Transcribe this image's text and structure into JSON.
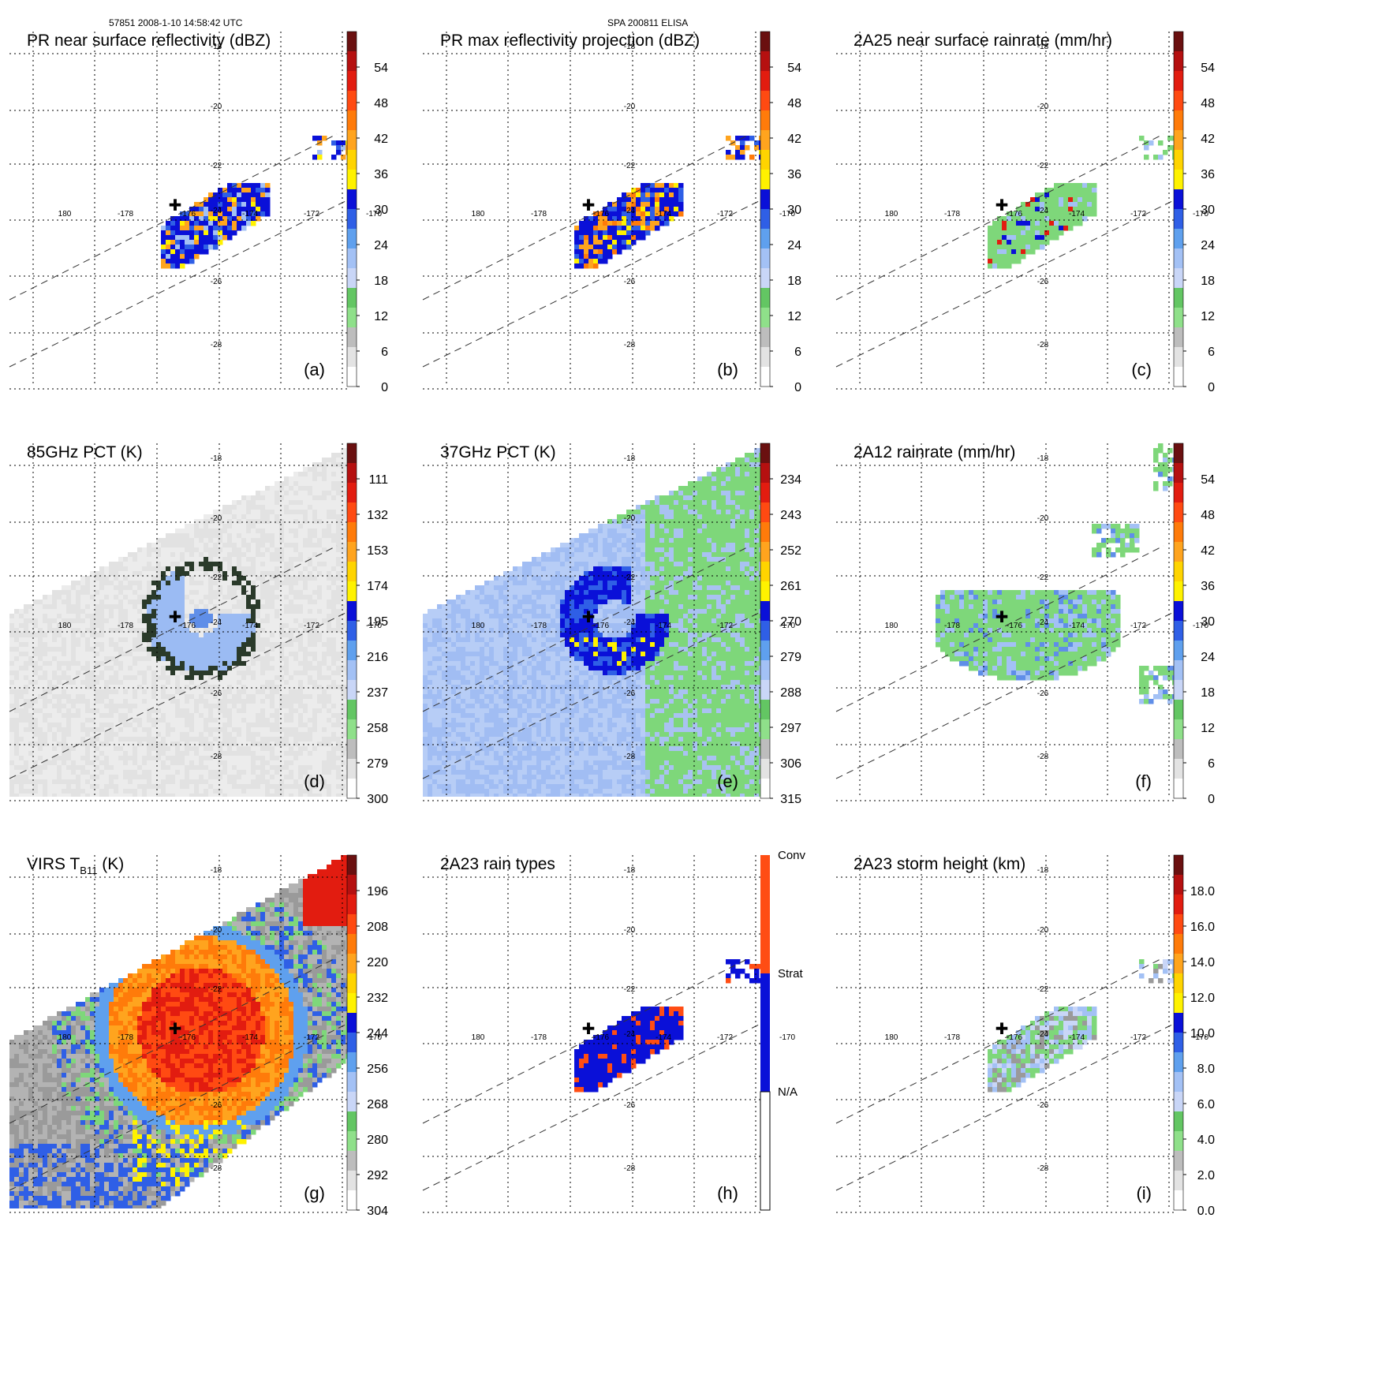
{
  "header": {
    "orbit_time": "57851 2008-1-10 14:58:42 UTC",
    "storm": "SPA 200811 ELISA"
  },
  "map": {
    "lon_labels": [
      "180",
      "-178",
      "-176",
      "-174",
      "-172",
      "-170"
    ],
    "lat_labels": [
      "-18",
      "-20",
      "-22",
      "-24",
      "-26",
      "-28"
    ],
    "storm_center_symbol": "✚"
  },
  "panels": [
    {
      "id": "a",
      "title": "PR near surface reflectivity (dBZ)",
      "letter": "(a)",
      "colorbar_labels": [
        "54",
        "48",
        "42",
        "36",
        "30",
        "24",
        "18",
        "12",
        "6",
        "0"
      ],
      "field": "pr_reflectivity",
      "swath": "pr"
    },
    {
      "id": "b",
      "title": "PR max reflectivity projection (dBZ)",
      "letter": "(b)",
      "colorbar_labels": [
        "54",
        "48",
        "42",
        "36",
        "30",
        "24",
        "18",
        "12",
        "6",
        "0"
      ],
      "field": "pr_max",
      "swath": "pr"
    },
    {
      "id": "c",
      "title": "2A25 near surface rainrate (mm/hr)",
      "letter": "(c)",
      "colorbar_labels": [
        "54",
        "48",
        "42",
        "36",
        "30",
        "24",
        "18",
        "12",
        "6",
        "0"
      ],
      "field": "rainrate",
      "swath": "pr"
    },
    {
      "id": "d",
      "title": "85GHz PCT (K)",
      "letter": "(d)",
      "colorbar_labels": [
        "111",
        "132",
        "153",
        "174",
        "195",
        "216",
        "237",
        "258",
        "279",
        "300"
      ],
      "field": "pct85",
      "swath": "tmi"
    },
    {
      "id": "e",
      "title": "37GHz PCT (K)",
      "letter": "(e)",
      "colorbar_labels": [
        "234",
        "243",
        "252",
        "261",
        "270",
        "279",
        "288",
        "297",
        "306",
        "315"
      ],
      "field": "pct37",
      "swath": "tmi"
    },
    {
      "id": "f",
      "title": "2A12 rainrate (mm/hr)",
      "letter": "(f)",
      "colorbar_labels": [
        "54",
        "48",
        "42",
        "36",
        "30",
        "24",
        "18",
        "12",
        "6",
        "0"
      ],
      "field": "tmi_rain",
      "swath": "tmi"
    },
    {
      "id": "g",
      "title_main": "VIRS T",
      "title_sub": "B11",
      "title_tail": " (K)",
      "letter": "(g)",
      "colorbar_labels": [
        "196",
        "208",
        "220",
        "232",
        "244",
        "256",
        "268",
        "280",
        "292",
        "304"
      ],
      "field": "virs",
      "swath": "virs"
    },
    {
      "id": "h",
      "title": "2A23 rain types",
      "letter": "(h)",
      "colorbar_labels": [
        "Conv",
        "Strat",
        "N/A"
      ],
      "field": "raintype",
      "swath": "pr"
    },
    {
      "id": "i",
      "title": "2A23 storm height (km)",
      "letter": "(i)",
      "colorbar_labels": [
        "18.0",
        "16.0",
        "14.0",
        "12.0",
        "10.0",
        "8.0",
        "6.0",
        "4.0",
        "2.0",
        "0.0"
      ],
      "field": "height",
      "swath": "pr"
    }
  ],
  "colors": {
    "scale": [
      "#ffffff",
      "#e3e3e3",
      "#bdbdbd",
      "#8fe08a",
      "#63c663",
      "#c9d6f7",
      "#a3c1f5",
      "#5fa0ee",
      "#2f5fe6",
      "#0a10d8",
      "#fff200",
      "#ffd400",
      "#ffa41e",
      "#ff7b0a",
      "#ff4a12",
      "#e21c10",
      "#b51010",
      "#6a1010"
    ],
    "convective": "#ff4d14",
    "stratiform": "#0a10d8",
    "na": "#ffffff"
  }
}
